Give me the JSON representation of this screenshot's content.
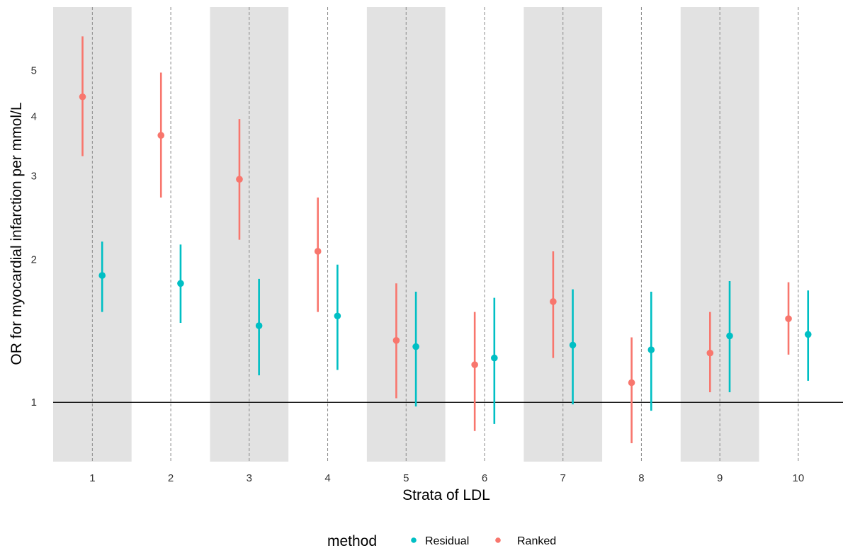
{
  "chart_data": {
    "type": "scatter",
    "subtype": "point-range (odds ratio with 95% CI)",
    "xlabel": "Strata of LDL",
    "ylabel": "OR for myocardial infarction per mmol/L",
    "y_scale": "log",
    "ylim": [
      0.75,
      6.8
    ],
    "y_ticks": [
      1,
      2,
      3,
      4,
      5
    ],
    "x_ticks": [
      1,
      2,
      3,
      4,
      5,
      6,
      7,
      8,
      9,
      10
    ],
    "reference_line": 1,
    "shaded_strata": [
      1,
      3,
      5,
      7,
      9
    ],
    "grid": "dashed vertical lines at each stratum",
    "legend": {
      "title": "method",
      "position": "bottom",
      "entries": [
        "Residual",
        "Ranked"
      ]
    },
    "series": [
      {
        "name": "Ranked",
        "color": "#F8766D",
        "strata": [
          1,
          2,
          3,
          4,
          5,
          6,
          7,
          8,
          9,
          10
        ],
        "or": [
          4.4,
          3.65,
          2.95,
          2.08,
          1.35,
          1.2,
          1.63,
          1.1,
          1.27,
          1.5
        ],
        "lower": [
          3.3,
          2.7,
          2.2,
          1.55,
          1.02,
          0.87,
          1.24,
          0.82,
          1.05,
          1.26
        ],
        "upper": [
          5.9,
          4.95,
          3.95,
          2.7,
          1.78,
          1.55,
          2.08,
          1.37,
          1.55,
          1.79
        ]
      },
      {
        "name": "Residual",
        "color": "#00BFC4",
        "strata": [
          1,
          2,
          3,
          4,
          5,
          6,
          7,
          8,
          9,
          10
        ],
        "or": [
          1.85,
          1.78,
          1.45,
          1.52,
          1.31,
          1.24,
          1.32,
          1.29,
          1.38,
          1.39
        ],
        "lower": [
          1.55,
          1.47,
          1.14,
          1.17,
          0.98,
          0.9,
          0.99,
          0.96,
          1.05,
          1.11
        ],
        "upper": [
          2.18,
          2.15,
          1.82,
          1.95,
          1.71,
          1.66,
          1.73,
          1.71,
          1.8,
          1.72
        ]
      }
    ]
  }
}
